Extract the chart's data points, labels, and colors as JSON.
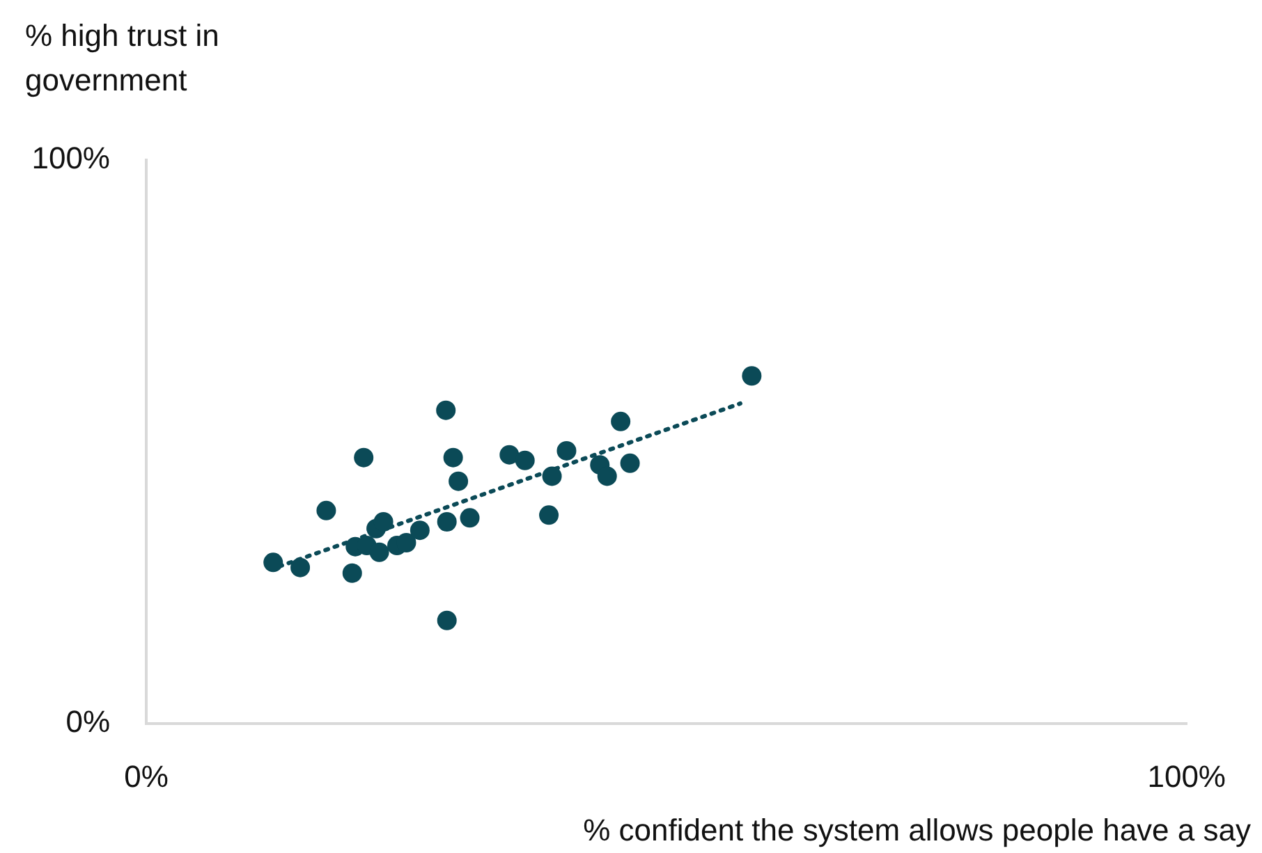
{
  "chart_data": {
    "type": "scatter",
    "xlabel": "% confident the system allows people have a say",
    "ylabel": "% high trust in government",
    "xlim": [
      0,
      100
    ],
    "xticks": [
      {
        "value": 0,
        "label": "0%"
      },
      {
        "value": 100,
        "label": "100%"
      }
    ],
    "ylim": [
      0,
      100
    ],
    "yticks": [
      {
        "value": 0,
        "label": "0%"
      },
      {
        "value": 100,
        "label": "100%"
      }
    ],
    "grid": false,
    "legend": false,
    "marker": "circle",
    "series": [
      {
        "color": "#0b4a57",
        "x": [
          12.2,
          14.8,
          17.3,
          19.8,
          20.1,
          20.9,
          21.2,
          22.1,
          22.4,
          22.8,
          24.1,
          25.0,
          26.3,
          28.8,
          28.9,
          28.9,
          29.5,
          30.0,
          31.1,
          34.9,
          36.4,
          38.7,
          39.0,
          40.4,
          43.6,
          44.3,
          45.6,
          46.5,
          58.2
        ],
        "values": [
          28.6,
          27.7,
          37.8,
          26.7,
          31.4,
          47.2,
          31.6,
          34.6,
          30.4,
          35.8,
          31.6,
          32.1,
          34.3,
          55.6,
          35.8,
          18.3,
          47.2,
          43.0,
          36.5,
          47.7,
          46.7,
          37.0,
          43.9,
          48.4,
          45.9,
          43.9,
          53.6,
          46.2,
          61.7
        ]
      },
      {
        "type": "line",
        "color": "#0b4a57",
        "line_style": "dotted",
        "marker": "none",
        "x": [
          12.8,
          57.1
        ],
        "values": [
          27.9,
          56.8
        ]
      }
    ]
  }
}
